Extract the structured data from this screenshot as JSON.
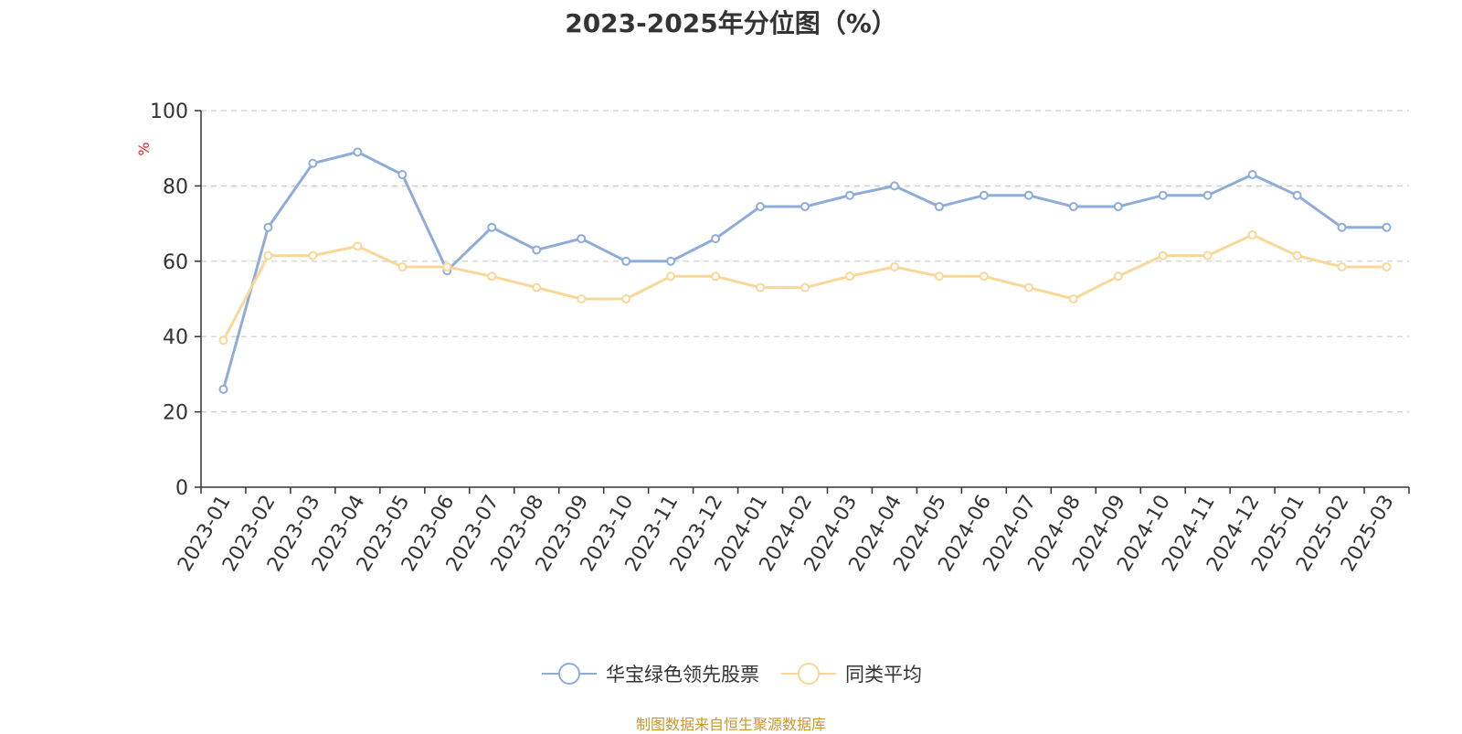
{
  "chart_data": {
    "type": "line",
    "title": "2023-2025年分位图（%）",
    "ylabel": "%",
    "xlabel": "",
    "ylim": [
      0,
      100
    ],
    "yticks": [
      0,
      20,
      40,
      60,
      80,
      100
    ],
    "grid": true,
    "legend_position": "bottom",
    "categories": [
      "2023-01",
      "2023-02",
      "2023-03",
      "2023-04",
      "2023-05",
      "2023-06",
      "2023-07",
      "2023-08",
      "2023-09",
      "2023-10",
      "2023-11",
      "2023-12",
      "2024-01",
      "2024-02",
      "2024-03",
      "2024-04",
      "2024-05",
      "2024-06",
      "2024-07",
      "2024-08",
      "2024-09",
      "2024-10",
      "2024-11",
      "2024-12",
      "2025-01",
      "2025-02",
      "2025-03"
    ],
    "series": [
      {
        "name": "华宝绿色领先股票",
        "color": "#8eacd9",
        "values": [
          26,
          69,
          86,
          89,
          83,
          57.5,
          69,
          63,
          66,
          60,
          60,
          66,
          74.5,
          74.5,
          77.5,
          80,
          74.5,
          77.5,
          77.5,
          74.5,
          74.5,
          77.5,
          77.5,
          83,
          77.5,
          69,
          69
        ]
      },
      {
        "name": "同类平均",
        "color": "#f9d798",
        "values": [
          39,
          61.5,
          61.5,
          64,
          58.5,
          58.5,
          56,
          53,
          50,
          50,
          56,
          56,
          53,
          53,
          56,
          58.5,
          56,
          56,
          53,
          50,
          56,
          61.5,
          61.5,
          67,
          61.5,
          58.5,
          58.5
        ]
      }
    ]
  },
  "source_note": "制图数据来自恒生聚源数据库",
  "colors": {
    "axis": "#333333",
    "grid": "#cccccc",
    "ylabel": "#e02020",
    "source": "#c8962b"
  }
}
